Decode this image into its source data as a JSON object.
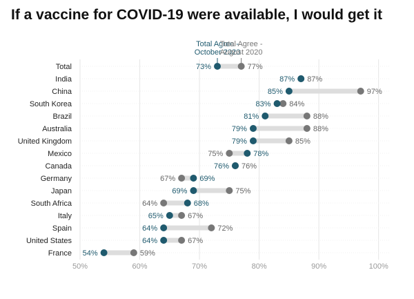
{
  "chart_data": {
    "type": "dumbbell",
    "title": "If a vaccine for COVID-19 were available, I would get it",
    "series": [
      {
        "name": "Total Agree - October 2020",
        "label_lines": [
          "Total Agree -",
          "October 2020"
        ],
        "color": "#1f5a6e"
      },
      {
        "name": "Total Agree - August 2020",
        "label_lines": [
          "Total Agree -",
          "August 2020"
        ],
        "color": "#777777"
      }
    ],
    "categories": [
      "Total",
      "India",
      "China",
      "South Korea",
      "Brazil",
      "Australia",
      "United Kingdom",
      "Mexico",
      "Canada",
      "Germany",
      "Japan",
      "South Africa",
      "Italy",
      "Spain",
      "United States",
      "France"
    ],
    "october_2020": [
      73,
      87,
      85,
      83,
      81,
      79,
      79,
      78,
      76,
      69,
      69,
      68,
      65,
      64,
      64,
      54
    ],
    "august_2020": [
      77,
      87,
      97,
      84,
      88,
      88,
      85,
      75,
      76,
      67,
      75,
      64,
      67,
      72,
      67,
      59
    ],
    "x_ticks": [
      "50%",
      "60%",
      "70%",
      "80%",
      "90%",
      "100%"
    ],
    "xlim": [
      50,
      102
    ],
    "unit": "%",
    "connector_color": "#dddddd",
    "grid": true
  }
}
